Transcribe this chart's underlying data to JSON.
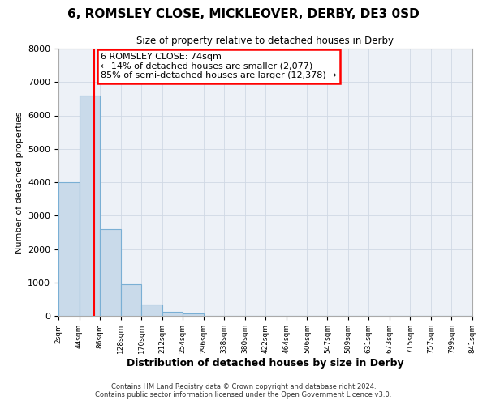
{
  "title": "6, ROMSLEY CLOSE, MICKLEOVER, DERBY, DE3 0SD",
  "subtitle": "Size of property relative to detached houses in Derby",
  "xlabel": "Distribution of detached houses by size in Derby",
  "ylabel": "Number of detached properties",
  "bin_edges": [
    2,
    44,
    86,
    128,
    170,
    212,
    254,
    296,
    338,
    380,
    422,
    464,
    506,
    547,
    589,
    631,
    673,
    715,
    757,
    799,
    841
  ],
  "bar_heights": [
    4000,
    6600,
    2600,
    950,
    330,
    130,
    80,
    0,
    0,
    0,
    0,
    0,
    0,
    0,
    0,
    0,
    0,
    0,
    0,
    0
  ],
  "bar_color": "#c9daea",
  "bar_edge_color": "#7aafd4",
  "grid_color": "#d0d8e4",
  "bg_color": "#edf1f7",
  "red_line_x": 74,
  "ylim": [
    0,
    8000
  ],
  "tick_labels": [
    "2sqm",
    "44sqm",
    "86sqm",
    "128sqm",
    "170sqm",
    "212sqm",
    "254sqm",
    "296sqm",
    "338sqm",
    "380sqm",
    "422sqm",
    "464sqm",
    "506sqm",
    "547sqm",
    "589sqm",
    "631sqm",
    "673sqm",
    "715sqm",
    "757sqm",
    "799sqm",
    "841sqm"
  ],
  "annotation_title": "6 ROMSLEY CLOSE: 74sqm",
  "annotation_line1": "← 14% of detached houses are smaller (2,077)",
  "annotation_line2": "85% of semi-detached houses are larger (12,378) →",
  "footer1": "Contains HM Land Registry data © Crown copyright and database right 2024.",
  "footer2": "Contains public sector information licensed under the Open Government Licence v3.0."
}
